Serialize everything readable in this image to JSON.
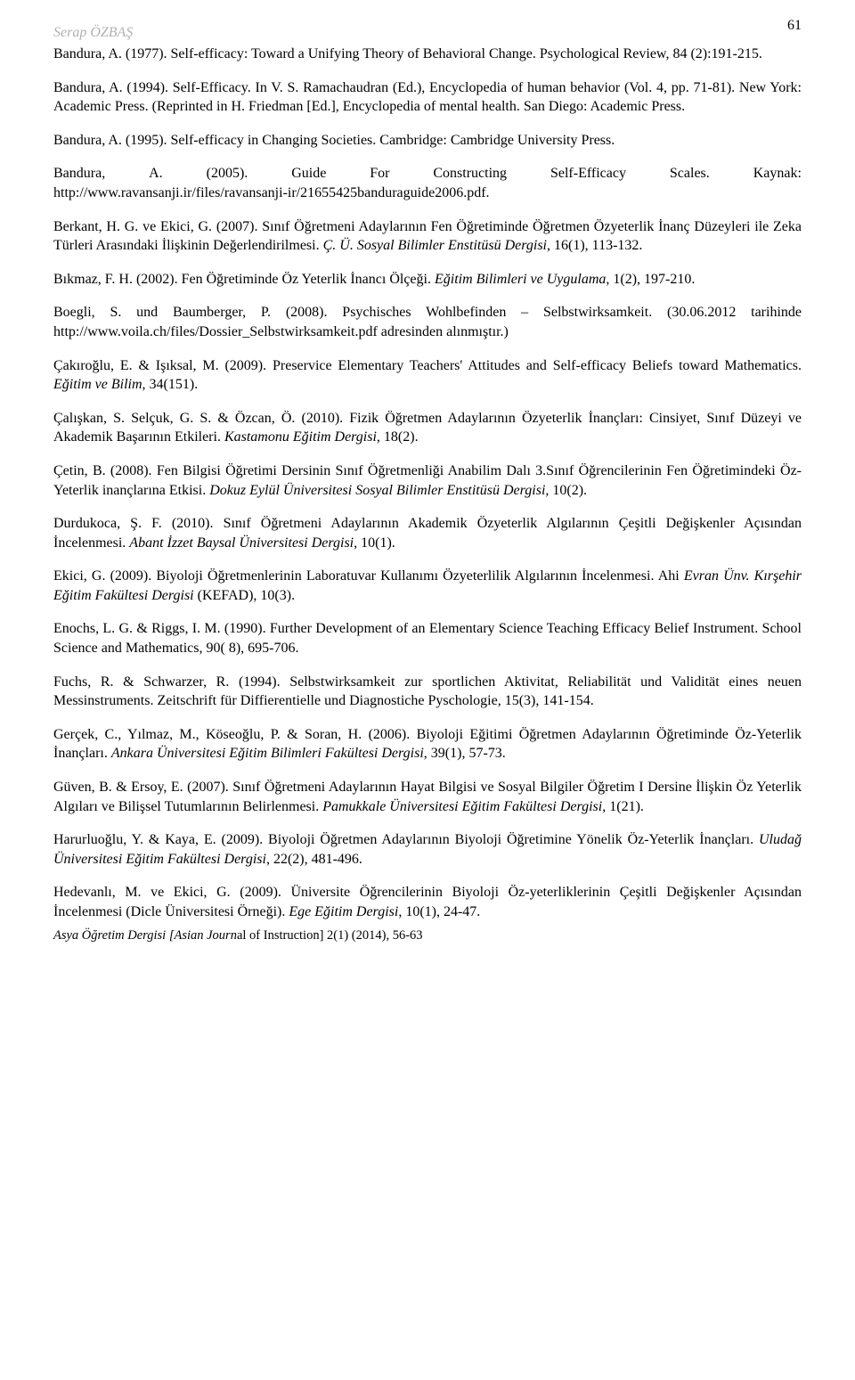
{
  "header": {
    "author": "Serap ÖZBAŞ",
    "page_number": "61"
  },
  "references": [
    {
      "plain_a": "Bandura, A. (1977). Self-efficacy: Toward a Unifying Theory of Behavioral Change. Psychological Review, 84 (2):191-215."
    },
    {
      "plain_a": "Bandura, A. (1994). Self-Efficacy. In V. S. Ramachaudran (Ed.), Encyclopedia of human behavior (Vol. 4, pp. 71-81). New York: Academic Press. (Reprinted in H. Friedman [Ed.], Encyclopedia of mental health. San Diego: Academic Press."
    },
    {
      "plain_a": "Bandura, A. (1995). Self-efficacy in Changing  Societies. Cambridge: Cambridge University Press."
    },
    {
      "spread": [
        "Bandura,",
        "A.",
        "(2005).",
        "Guide",
        "For",
        "Constructing",
        "Self-Efficacy",
        "Scales.",
        "Kaynak:"
      ],
      "plain_b": "http://www.ravansanji.ir/files/ravansanji-ir/21655425banduraguide2006.pdf."
    },
    {
      "plain_a": "Berkant, H. G. ve Ekici, G. (2007). Sınıf Öğretmeni Adaylarının Fen Öğretiminde Öğretmen Özyeterlik İnanç Düzeyleri ile Zeka Türleri Arasındaki İlişkinin Değerlendirilmesi. ",
      "italic_a": "Ç. Ü. Sosyal Bilimler Enstitüsü Dergisi",
      "plain_b": ", 16(1), 113-132."
    },
    {
      "plain_a": "Bıkmaz, F. H. (2002). Fen Öğretiminde Öz Yeterlik İnancı Ölçeği. ",
      "italic_a": "Eğitim Bilimleri ve Uygulama",
      "plain_b": ", 1(2), 197-210."
    },
    {
      "plain_a": "Boegli, S. und Baumberger, P. (2008). Psychisches Wohlbefinden – Selbstwirksamkeit. (30.06.2012 tarihinde http://www.voila.ch/files/Dossier_Selbstwirksamkeit.pdf adresinden alınmıştır.)"
    },
    {
      "plain_a": "Çakıroğlu, E. & Işıksal, M. (2009). Preservice Elementary Teachers' Attitudes and Self-efficacy Beliefs toward Mathematics. ",
      "italic_a": "Eğitim ve Bilim",
      "plain_b": ", 34(151)."
    },
    {
      "plain_a": "Çalışkan, S. Selçuk, G. S. & Özcan, Ö. (2010). Fizik Öğretmen Adaylarının Özyeterlik İnançları: Cinsiyet, Sınıf Düzeyi ve Akademik Başarının Etkileri. ",
      "italic_a": "Kastamonu Eğitim Dergisi",
      "plain_b": ", 18(2)."
    },
    {
      "plain_a": "Çetin, B. (2008). Fen Bilgisi Öğretimi Dersinin Sınıf Öğretmenliği Anabilim Dalı 3.Sınıf Öğrencilerinin Fen Öğretimindeki Öz-Yeterlik inançlarına Etkisi. ",
      "italic_a": "Dokuz Eylül Üniversitesi Sosyal Bilimler Enstitüsü Dergisi",
      "plain_b": ", 10(2)."
    },
    {
      "plain_a": "Durdukoca, Ş. F. (2010). Sınıf Öğretmeni Adaylarının Akademik Özyeterlik Algılarının Çeşitli Değişkenler Açısından İncelenmesi. ",
      "italic_a": "Abant İzzet Baysal Üniversitesi Dergisi",
      "plain_b": ", 10(1)."
    },
    {
      "plain_a": "Ekici, G. (2009). Biyoloji Öğretmenlerinin Laboratuvar Kullanımı Özyeterlilik Algılarının İncelenmesi. ",
      "plain_b": "Ahi ",
      "italic_a": "Evran Ünv. Kırşehir Eğitim Fakültesi Dergisi",
      "plain_c": " (KEFAD), 10(3)."
    },
    {
      "plain_a": "Enochs, L. G. & Riggs, I. M. (1990). Further Development of an Elementary Science Teaching Efficacy Belief Instrument. School Science and Mathematics, 90( 8), 695-706."
    },
    {
      "plain_a": "Fuchs, R. & Schwarzer, R. (1994). Selbstwirksamkeit zur sportlichen Aktivitat, Reliabilität und Validität eines neuen Messinstruments. Zeitschrift für Diffierentielle und Diagnostiche Pyschologie, 15(3), 141-154."
    },
    {
      "plain_a": "Gerçek, C., Yılmaz, M., Köseoğlu, P. & Soran, H. (2006). Biyoloji Eğitimi Öğretmen Adaylarının Öğretiminde Öz-Yeterlik İnançları. ",
      "italic_a": "Ankara Üniversitesi Eğitim Bilimleri Fakültesi Dergisi",
      "plain_b": ", 39(1), 57-73."
    },
    {
      "plain_a": "Güven, B. & Ersoy, E. (2007). Sınıf Öğretmeni Adaylarının Hayat Bilgisi ve Sosyal Bilgiler Öğretim I Dersine İlişkin Öz Yeterlik Algıları ve Bilişsel Tutumlarının Belirlenmesi. ",
      "italic_a": "Pamukkale Üniversitesi Eğitim Fakültesi Dergisi",
      "plain_b": ", 1(21)."
    },
    {
      "plain_a": "Harurluoğlu, Y. & Kaya, E. (2009). Biyoloji Öğretmen Adaylarının Biyoloji Öğretimine Yönelik Öz-Yeterlik İnançları. ",
      "italic_a": "Uludağ Üniversitesi Eğitim Fakültesi Dergisi",
      "plain_b": ", 22(2), 481-496."
    },
    {
      "plain_a": "Hedevanlı, M. ve Ekici, G. (2009). Üniversite Öğrencilerinin Biyoloji Öz-yeterliklerinin Çeşitli Değişkenler Açısından İncelenmesi (Dicle Üniversitesi Örneği). ",
      "italic_a": "Ege Eğitim Dergisi",
      "plain_b": ", 10(1), 24-47."
    }
  ],
  "footer": {
    "italic_part": "Asya Öğretim Dergisi [Asian Journ",
    "plain_part": "al of Instruction] 2(1) (2014), 56-63"
  }
}
